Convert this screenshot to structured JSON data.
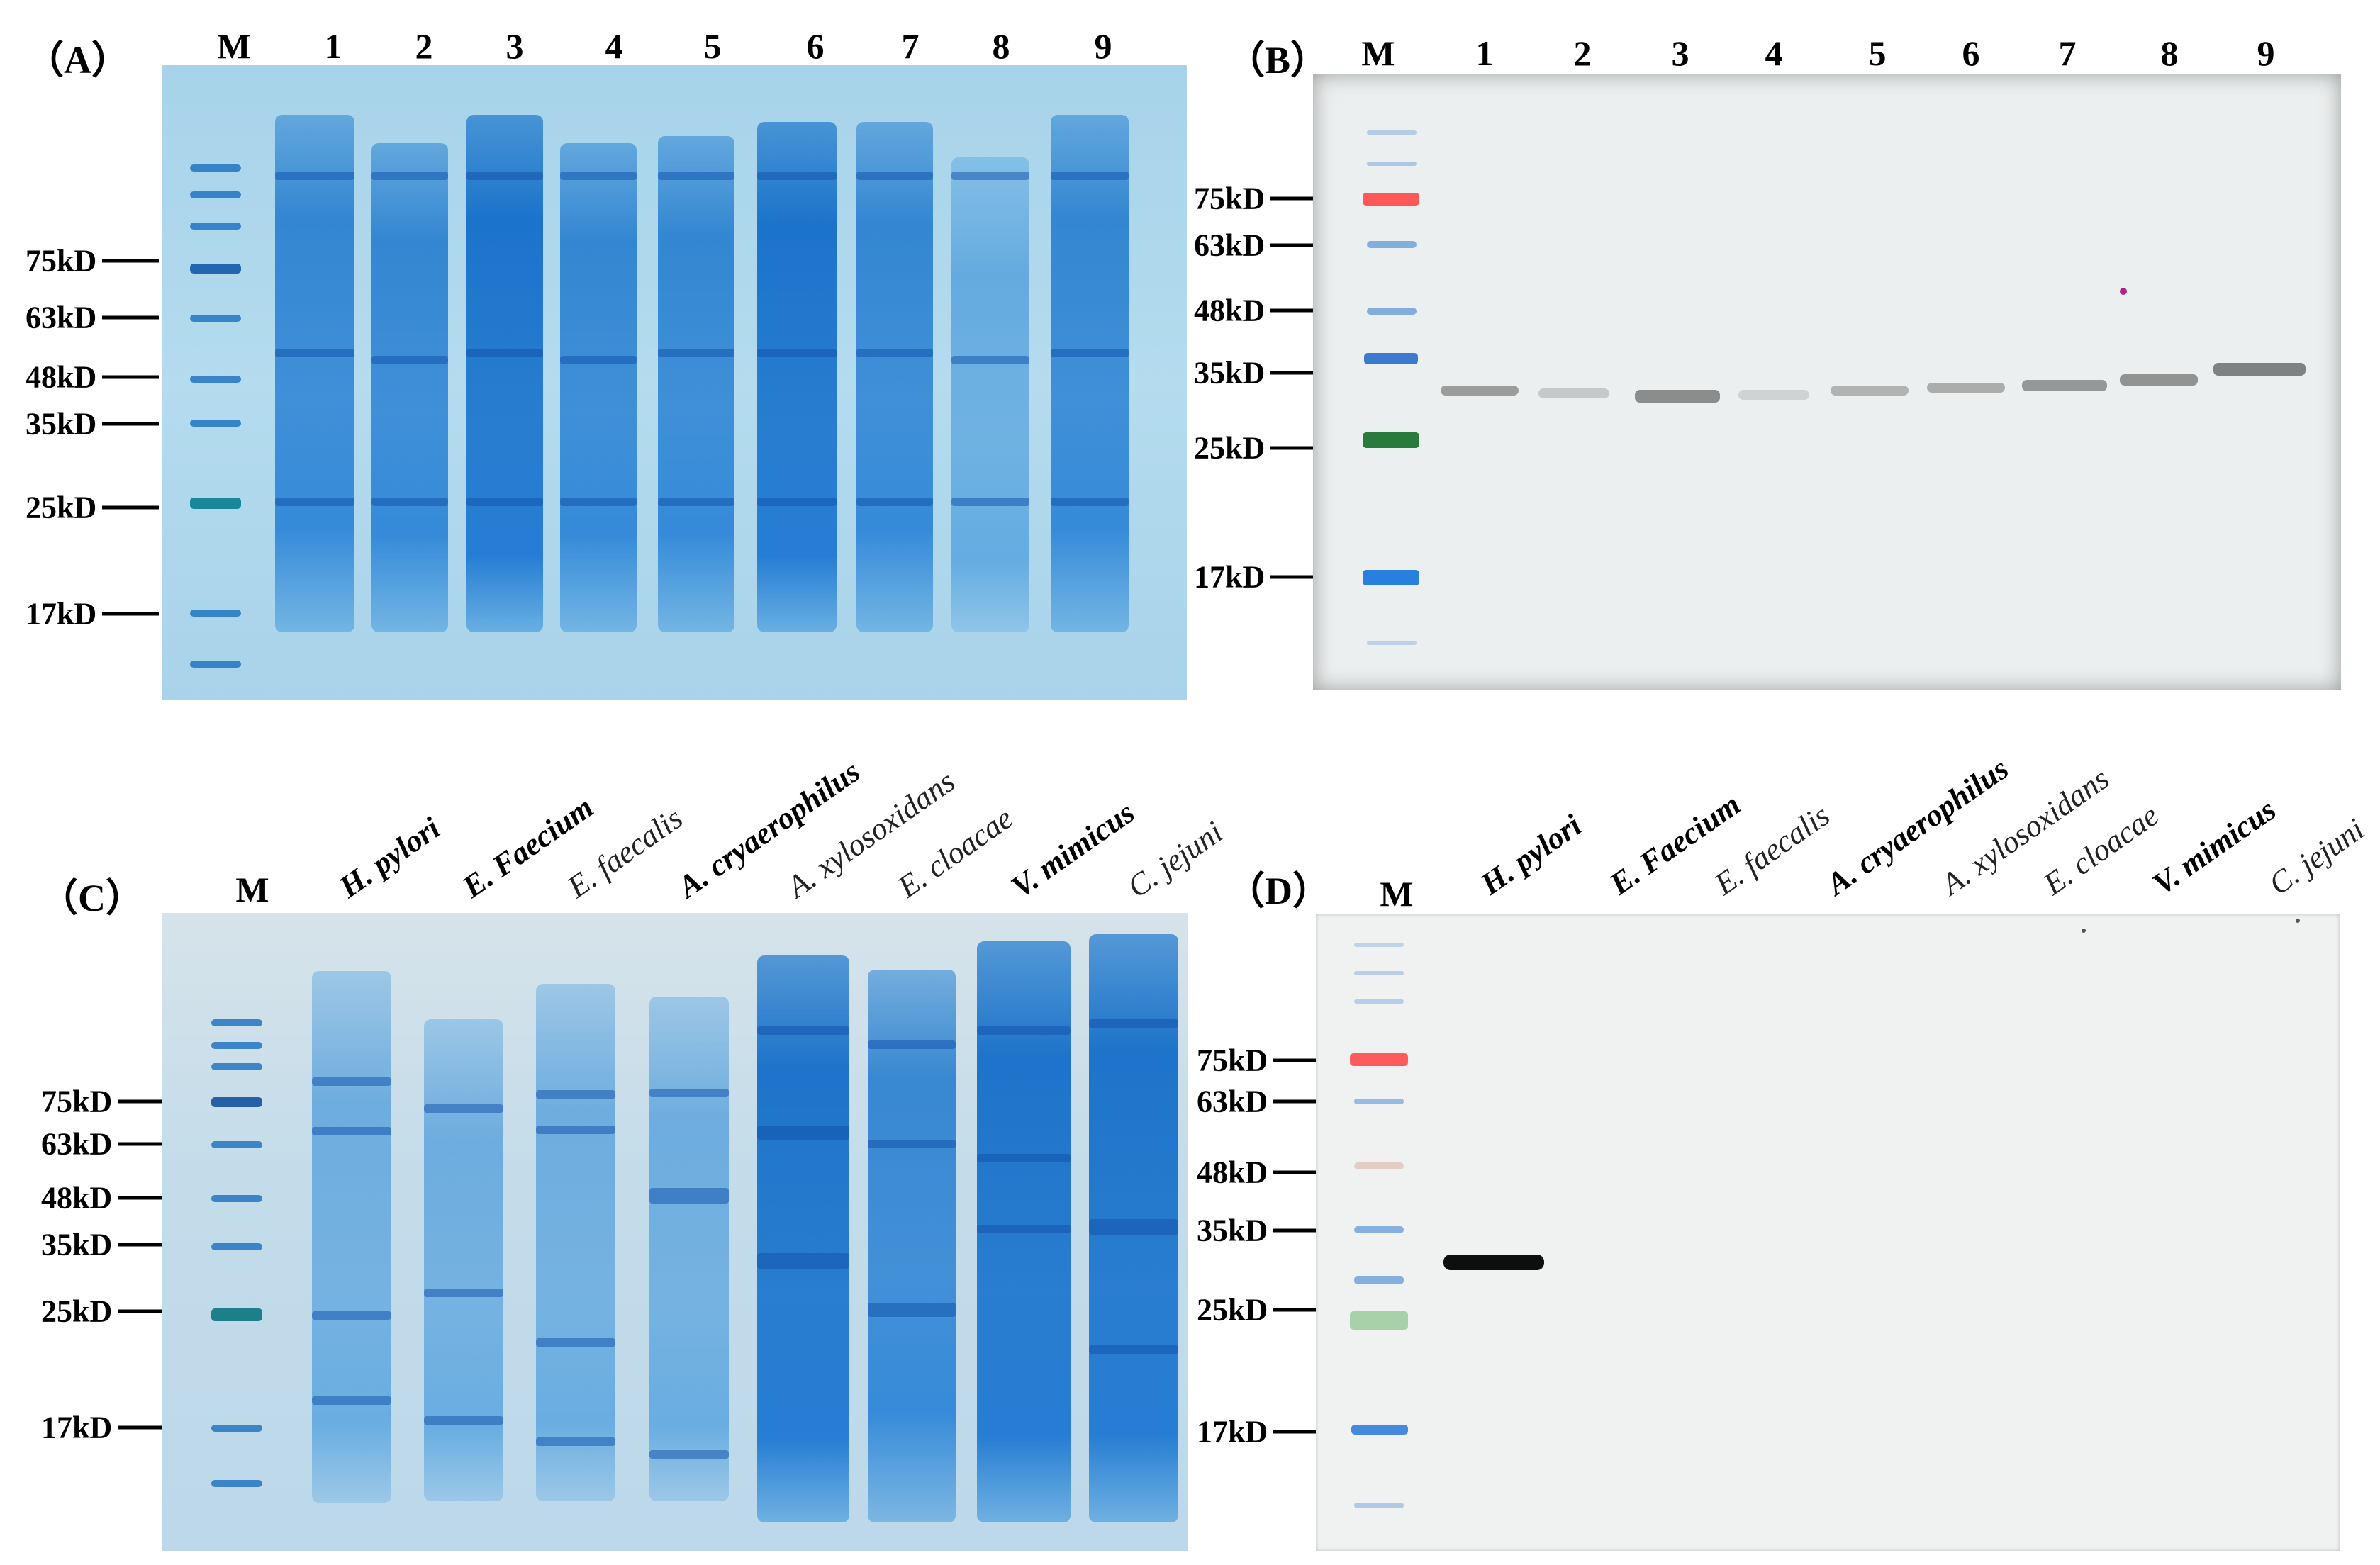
{
  "panels": {
    "A": {
      "letter": "（A）",
      "lanes": [
        "M",
        "1",
        "2",
        "3",
        "4",
        "5",
        "6",
        "7",
        "8",
        "9"
      ],
      "markers": [
        "75kD",
        "63kD",
        "48kD",
        "35kD",
        "25kD",
        "17kD"
      ]
    },
    "B": {
      "letter": "（B）",
      "lanes": [
        "M",
        "1",
        "2",
        "3",
        "4",
        "5",
        "6",
        "7",
        "8",
        "9"
      ],
      "markers": [
        "75kD",
        "63kD",
        "48kD",
        "35kD",
        "25kD",
        "17kD"
      ]
    },
    "C": {
      "letter": "（C）",
      "ladder_label": "M",
      "species": [
        "H. pylori",
        "E. Faecium",
        "E. faecalis",
        "A. cryaerophilus",
        "A. xylosoxidans",
        "E. cloacae",
        "V. mimicus",
        "C. jejuni"
      ],
      "markers": [
        "75kD",
        "63kD",
        "48kD",
        "35kD",
        "25kD",
        "17kD"
      ]
    },
    "D": {
      "letter": "（D）",
      "ladder_label": "M",
      "species": [
        "H. pylori",
        "E. Faecium",
        "E. faecalis",
        "A. cryaerophilus",
        "A. xylosoxidans",
        "E. cloacae",
        "V. mimicus",
        "C. jejuni"
      ],
      "markers": [
        "75kD",
        "63kD",
        "48kD",
        "35kD",
        "25kD",
        "17kD"
      ]
    }
  },
  "colors": {
    "coomassie_bg": "#a9d4ea",
    "blot_bg": "#ecefef",
    "ladder_red": "#ff4b4b",
    "ladder_green": "#1e7a2a",
    "ladder_blue": "#2a7fd8"
  }
}
